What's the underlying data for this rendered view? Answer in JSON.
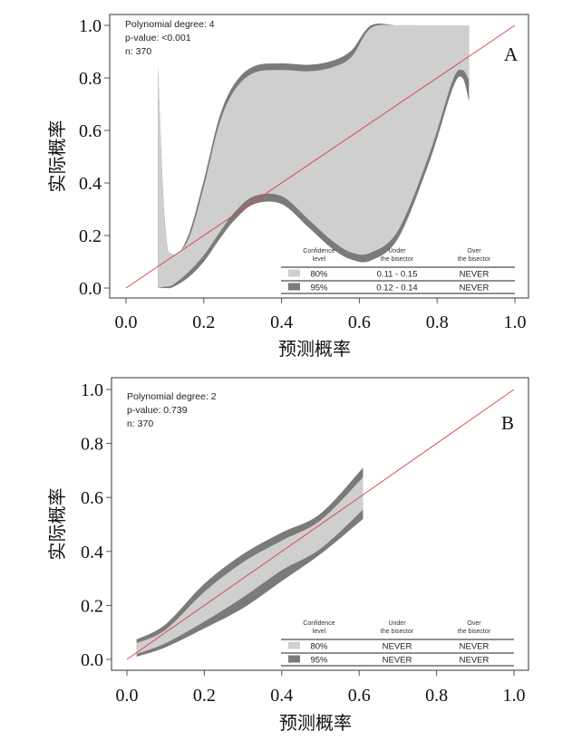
{
  "colors": {
    "band_80": "#cfcfcf",
    "band_95": "#7a7a7a",
    "bisector": "#e0474c",
    "axis": "#555555"
  },
  "chart_data": [
    {
      "type": "area",
      "panel_label": "A",
      "xlabel": "预测概率",
      "ylabel": "实际概率",
      "xlim": [
        0,
        1
      ],
      "ylim": [
        0,
        1
      ],
      "xticks": [
        "0.0",
        "0.2",
        "0.4",
        "0.6",
        "0.8",
        "1.0"
      ],
      "yticks": [
        "0.0",
        "0.2",
        "0.4",
        "0.6",
        "0.8",
        "1.0"
      ],
      "annotations": [
        "Polynomial degree: 4",
        "p-value: <0.001",
        "n: 370"
      ],
      "reference_line": "bisector y = x",
      "x": [
        0.082,
        0.1,
        0.12,
        0.16,
        0.2,
        0.24,
        0.28,
        0.33,
        0.4,
        0.47,
        0.53,
        0.58,
        0.63,
        0.7,
        0.78,
        0.84,
        0.865,
        0.882
      ],
      "series": [
        {
          "name": "95% upper",
          "values": [
            0.845,
            0.25,
            0.115,
            0.2,
            0.41,
            0.65,
            0.78,
            0.845,
            0.855,
            0.85,
            0.865,
            0.905,
            1.0,
            1.0,
            1.0,
            1.0,
            1.0,
            1.0
          ]
        },
        {
          "name": "80% upper",
          "values": [
            0.845,
            0.24,
            0.13,
            0.185,
            0.385,
            0.625,
            0.755,
            0.82,
            0.83,
            0.825,
            0.84,
            0.88,
            0.99,
            1.0,
            1.0,
            1.0,
            1.0,
            1.0
          ]
        },
        {
          "name": "80% lower",
          "values": [
            0.0,
            0.005,
            0.012,
            0.06,
            0.125,
            0.21,
            0.29,
            0.35,
            0.35,
            0.26,
            0.18,
            0.135,
            0.135,
            0.22,
            0.51,
            0.79,
            0.83,
            0.79
          ]
        },
        {
          "name": "95% lower",
          "values": [
            0.0,
            0.0,
            0.003,
            0.04,
            0.1,
            0.185,
            0.26,
            0.32,
            0.32,
            0.23,
            0.15,
            0.108,
            0.105,
            0.19,
            0.48,
            0.76,
            0.8,
            0.71
          ]
        }
      ],
      "legend": {
        "placement": "bottom-right",
        "headers": [
          [
            "Confidence",
            "level"
          ],
          [
            "Under",
            "the bisector"
          ],
          [
            "Over",
            "the bisector"
          ]
        ],
        "rows": [
          {
            "level": "80%",
            "under": "0.11 - 0.15",
            "over": "NEVER"
          },
          {
            "level": "95%",
            "under": "0.12 - 0.14",
            "over": "NEVER"
          }
        ]
      }
    },
    {
      "type": "area",
      "panel_label": "B",
      "xlabel": "预测概率",
      "ylabel": "实际概率",
      "xlim": [
        0,
        1
      ],
      "ylim": [
        0,
        1
      ],
      "xticks": [
        "0.0",
        "0.2",
        "0.4",
        "0.6",
        "0.8",
        "1.0"
      ],
      "yticks": [
        "0.0",
        "0.2",
        "0.4",
        "0.6",
        "0.8",
        "1.0"
      ],
      "annotations": [
        "Polynomial degree: 2",
        "p-value: 0.739",
        "n: 370"
      ],
      "reference_line": "bisector y = x",
      "x": [
        0.025,
        0.1,
        0.2,
        0.3,
        0.4,
        0.5,
        0.61
      ],
      "series": [
        {
          "name": "95% upper",
          "values": [
            0.074,
            0.13,
            0.28,
            0.39,
            0.47,
            0.54,
            0.71
          ]
        },
        {
          "name": "80% upper",
          "values": [
            0.06,
            0.11,
            0.25,
            0.36,
            0.44,
            0.515,
            0.675
          ]
        },
        {
          "name": "80% lower",
          "values": [
            0.02,
            0.06,
            0.14,
            0.23,
            0.33,
            0.41,
            0.555
          ]
        },
        {
          "name": "95% lower",
          "values": [
            0.01,
            0.045,
            0.115,
            0.19,
            0.29,
            0.39,
            0.52
          ]
        }
      ],
      "legend": {
        "placement": "bottom-right",
        "headers": [
          [
            "Confidence",
            "level"
          ],
          [
            "Under",
            "the bisector"
          ],
          [
            "Over",
            "the bisector"
          ]
        ],
        "rows": [
          {
            "level": "80%",
            "under": "NEVER",
            "over": "NEVER"
          },
          {
            "level": "95%",
            "under": "NEVER",
            "over": "NEVER"
          }
        ]
      }
    }
  ]
}
